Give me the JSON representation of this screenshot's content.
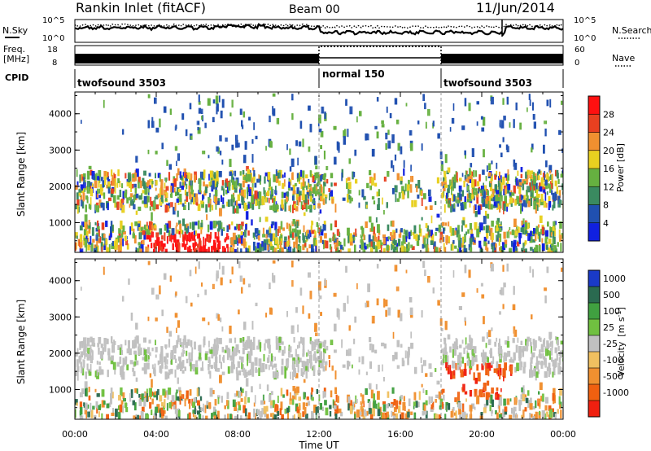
{
  "header": {
    "station": "Rankin Inlet (fitACF)",
    "beam": "Beam 00",
    "date": "11/Jun/2014"
  },
  "strip": {
    "nsky_label": "N.Sky",
    "nsearch_label": "N.Search",
    "nsearch_style": "dotted",
    "freq_label": "Freq.",
    "freq_unit": "[MHz]",
    "nave_label": "Nave",
    "nave_style": "dotted",
    "cpid_label": "CPID",
    "noise_ticks": [
      "10^5",
      "10^0"
    ],
    "freq_ticks": [
      "18",
      "8"
    ],
    "nave_ticks": [
      "60",
      "0"
    ]
  },
  "cpid_segments": [
    {
      "name": "twofsound 3503",
      "start_hour": 0,
      "end_hour": 12
    },
    {
      "name": "normal 150",
      "start_hour": 12,
      "end_hour": 18
    },
    {
      "name": "twofsound 3503",
      "start_hour": 18,
      "end_hour": 24
    }
  ],
  "chart_data": [
    {
      "type": "heatmap",
      "quantity": "Power",
      "xlabel": "",
      "ylabel": "Slant Range [km]",
      "xlim": [
        0,
        24
      ],
      "ylim": [
        180,
        4600
      ],
      "yticks": [
        1000,
        2000,
        3000,
        4000
      ],
      "colorbar": {
        "label": "Power [dB]",
        "ticks": [
          "4",
          "8",
          "12",
          "16",
          "20",
          "24",
          "28"
        ],
        "colors": [
          "#1020e0",
          "#2050b0",
          "#3a8a60",
          "#66b040",
          "#e8d020",
          "#f09030",
          "#e84020",
          "#ff1010"
        ]
      },
      "regions": [
        {
          "t0": 0.0,
          "t1": 12.0,
          "r0": 1400,
          "r1": 2400,
          "level": "mixed-8-20"
        },
        {
          "t0": 3.5,
          "t1": 7.5,
          "r0": 180,
          "r1": 700,
          "level": "28"
        },
        {
          "t0": 12.0,
          "t1": 15.5,
          "r0": 200,
          "r1": 700,
          "level": "mixed-8-20"
        },
        {
          "t0": 18.0,
          "t1": 24.0,
          "r0": 200,
          "r1": 2400,
          "level": "mixed-8-20"
        }
      ]
    },
    {
      "type": "heatmap",
      "quantity": "Velocity",
      "xlabel": "Time UT",
      "ylabel": "Slant Range [km]",
      "xlim": [
        0,
        24
      ],
      "ylim": [
        180,
        4600
      ],
      "yticks": [
        1000,
        2000,
        3000,
        4000
      ],
      "xticks": [
        "00:00",
        "04:00",
        "08:00",
        "12:00",
        "16:00",
        "20:00",
        "00:00"
      ],
      "colorbar": {
        "label": "Velocity",
        "unit_base": "[m s",
        "unit_exp": "-1",
        "unit_close": "]",
        "ticks": [
          "1000",
          "500",
          "100",
          "25",
          "-25",
          "-100",
          "-500",
          "-1000"
        ],
        "colors": [
          "#1a3ac8",
          "#2a6a50",
          "#40a040",
          "#70c040",
          "#c0c0c0",
          "#f0c060",
          "#f09030",
          "#f06010",
          "#f02010"
        ]
      },
      "regions": [
        {
          "t0": 0.0,
          "t1": 12.0,
          "r0": 1400,
          "r1": 2400,
          "level": "-25..25"
        },
        {
          "t0": 12.0,
          "t1": 13.0,
          "r0": 800,
          "r1": 1900,
          "level": "-500"
        },
        {
          "t0": 18.0,
          "t1": 21.5,
          "r0": 800,
          "r1": 1600,
          "level": "-500"
        }
      ]
    }
  ]
}
